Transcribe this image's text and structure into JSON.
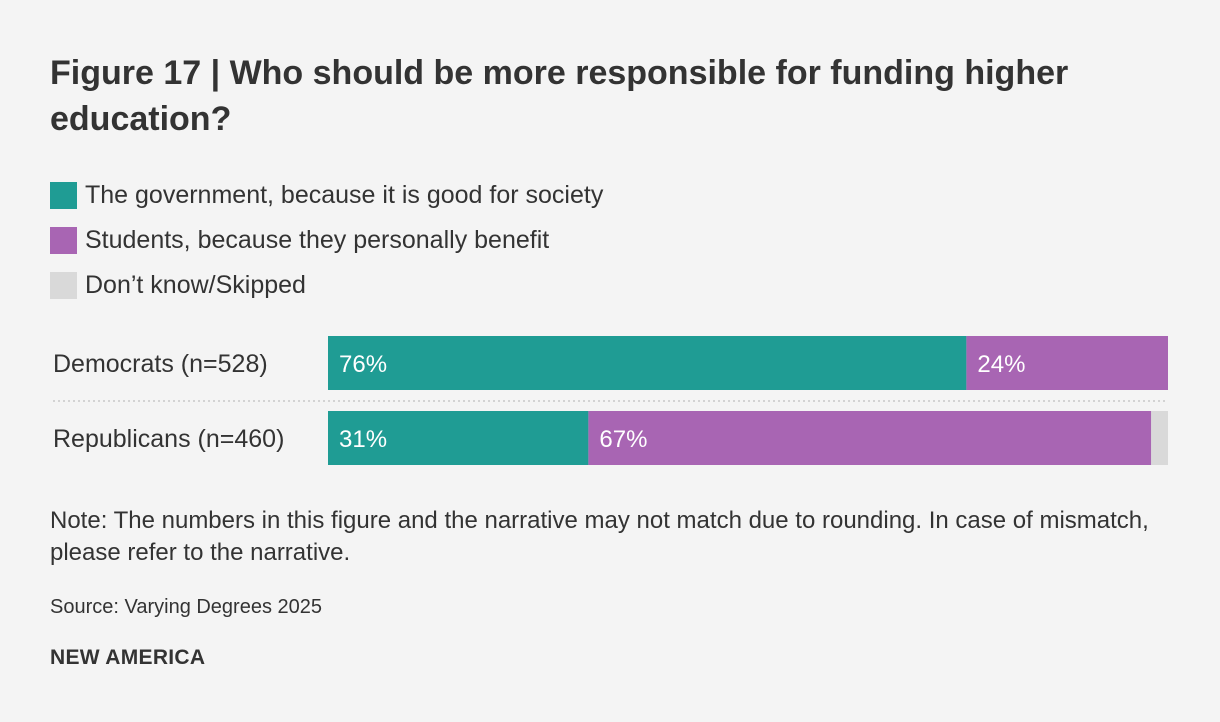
{
  "title": "Figure 17 | Who should be more responsible for funding higher education?",
  "note": "Note: The numbers in this figure and the narrative may not match due to rounding. In case of mismatch, please refer to the narrative.",
  "source": "Source: Varying Degrees 2025",
  "brand": "NEW AMERICA",
  "colors": {
    "government": "#1f9c94",
    "students": "#a865b3",
    "dont_know": "#d9d9d9",
    "text": "#333333",
    "bar_label": "#ffffff",
    "separator": "#c8c8c8"
  },
  "chart_data": {
    "type": "bar",
    "orientation": "horizontal",
    "stacked": true,
    "title": "Figure 17 | Who should be more responsible for funding higher education?",
    "xlabel": "",
    "ylabel": "",
    "xlim": [
      0,
      100
    ],
    "categories": [
      "Democrats (n=528)",
      "Republicans (n=460)"
    ],
    "series": [
      {
        "name": "The government, because it is good for society",
        "key": "government",
        "values": [
          76,
          31
        ],
        "labels": [
          "76%",
          "31%"
        ]
      },
      {
        "name": "Students, because they personally benefit",
        "key": "students",
        "values": [
          24,
          67
        ],
        "labels": [
          "24%",
          "67%"
        ]
      },
      {
        "name": "Don’t know/Skipped",
        "key": "dont_know",
        "values": [
          0,
          2
        ],
        "labels": [
          "",
          ""
        ]
      }
    ]
  }
}
